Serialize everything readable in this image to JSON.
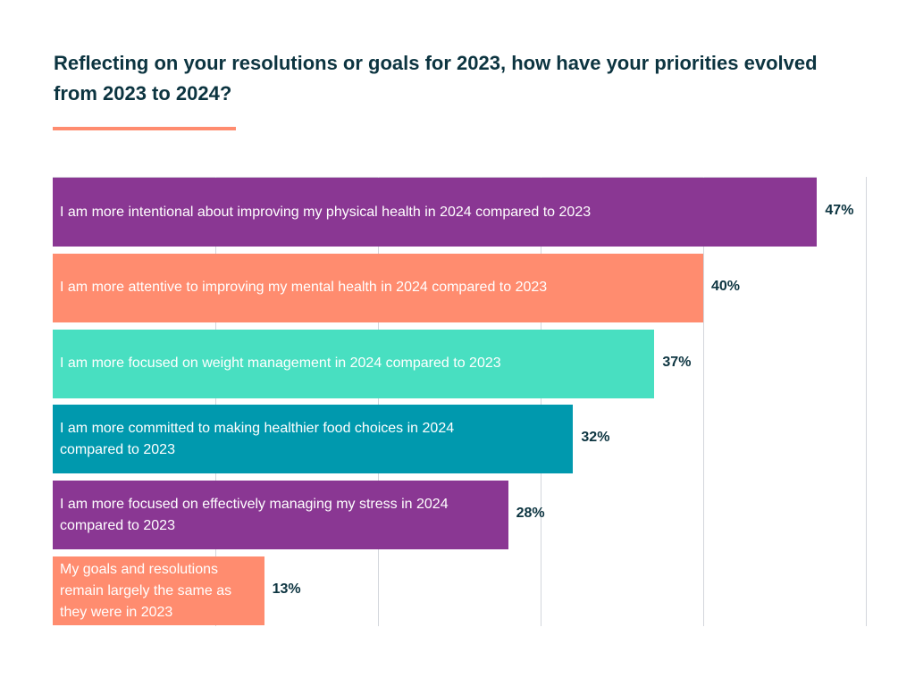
{
  "title": "Reflecting on your resolutions or goals for 2023, how have your priorities evolved from 2023 to 2024?",
  "accent_color": "#ff8c6f",
  "chart_data": {
    "type": "bar",
    "orientation": "horizontal",
    "categories": [
      "I am more intentional about improving my physical health in 2024 compared to 2023",
      "I am more attentive to improving my mental health in 2024 compared to 2023",
      "I am more focused on weight management in 2024 compared to 2023",
      "I am more committed to making healthier food choices in 2024 compared to 2023",
      "I am more focused on effectively managing my stress in 2024 compared to 2023",
      "My goals and resolutions remain largely the same as they were in 2023"
    ],
    "values": [
      47,
      40,
      37,
      32,
      28,
      13
    ],
    "value_labels": [
      "47%",
      "40%",
      "37%",
      "32%",
      "28%",
      "13%"
    ],
    "colors": [
      "#8a3793",
      "#ff8c6f",
      "#48dfc1",
      "#0099ae",
      "#8a3793",
      "#ff8c6f"
    ],
    "xlim": [
      0,
      50
    ],
    "gridlines": [
      10,
      20,
      30,
      40,
      50
    ],
    "grid": true,
    "unit": "%"
  }
}
